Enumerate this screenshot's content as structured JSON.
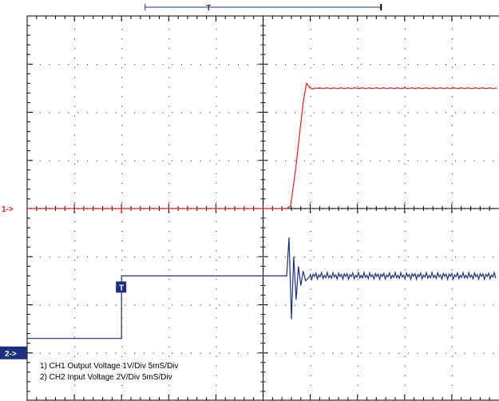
{
  "chart_data": {
    "type": "line",
    "title": "",
    "xlabel": "",
    "ylabel": "",
    "grid": true,
    "grid_divisions": {
      "x": 10,
      "y": 8
    },
    "time_per_division_ms": 5,
    "trigger": {
      "marker_label": "T",
      "time_div": -3
    },
    "acquisition_window_bar": {
      "start_div": -2.5,
      "end_div": 2.5,
      "marker_label": "T"
    },
    "channel_markers": [
      {
        "label": "1->",
        "color": "#e0201e",
        "level_div": 0
      },
      {
        "label": "2->",
        "color": "#1f2f7f",
        "level_div": -3
      }
    ],
    "series": [
      {
        "name": "CH1 Output Voltage",
        "color": "#e0201e",
        "volts_per_div": 1,
        "x_div": [
          -5.0,
          0.5,
          0.58,
          0.62,
          0.7,
          0.78,
          0.85,
          0.92,
          1.0,
          1.05,
          1.1,
          1.2,
          1.5,
          2.0,
          3.0,
          4.0,
          4.95
        ],
        "y_div": [
          0.0,
          0.0,
          0.05,
          0.3,
          0.9,
          1.6,
          2.2,
          2.6,
          2.5,
          2.48,
          2.5,
          2.5,
          2.5,
          2.49,
          2.5,
          2.51,
          2.5
        ]
      },
      {
        "name": "CH2 Input Voltage",
        "color": "#1f2f7f",
        "volts_per_div": 2,
        "x_div": [
          -5.0,
          -3.0,
          -3.0,
          0.5,
          0.55,
          0.6,
          0.65,
          0.7,
          0.75,
          0.8,
          0.85,
          0.9,
          1.0,
          2.0,
          3.0,
          4.0,
          4.95
        ],
        "y_div": [
          -2.7,
          -2.7,
          -1.4,
          -1.4,
          -0.6,
          -2.3,
          -1.0,
          -1.9,
          -1.2,
          -1.6,
          -1.3,
          -1.5,
          -1.4,
          -1.42,
          -1.4,
          -1.38,
          -1.42
        ]
      }
    ],
    "legend_lines": [
      "1) CH1 Output Voltage 1V/Div 5mS/Div",
      "2) CH2 Input Voltage 2V/Div 5mS/Div"
    ]
  }
}
